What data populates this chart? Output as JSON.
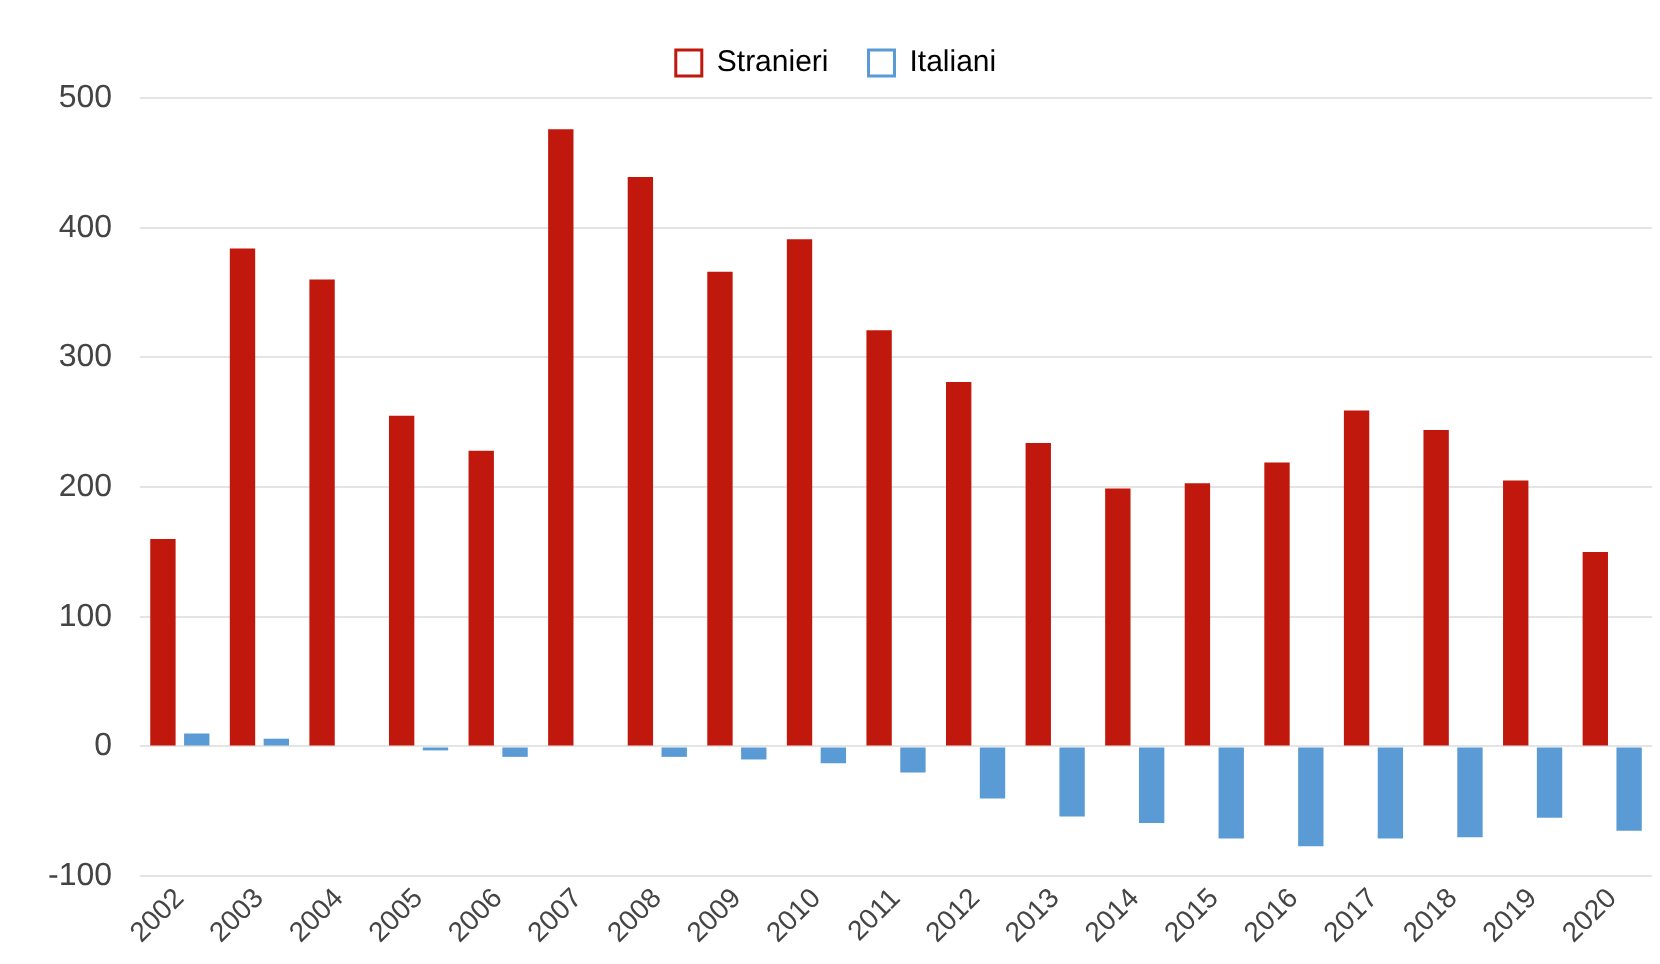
{
  "chart_data": {
    "type": "bar",
    "categories": [
      "2002",
      "2003",
      "2004",
      "2005",
      "2006",
      "2007",
      "2008",
      "2009",
      "2010",
      "2011",
      "2012",
      "2013",
      "2014",
      "2015",
      "2016",
      "2017",
      "2018",
      "2019",
      "2020"
    ],
    "series": [
      {
        "name": "Stranieri",
        "color": "#c0180c",
        "values": [
          160,
          384,
          360,
          255,
          228,
          476,
          439,
          366,
          391,
          321,
          281,
          234,
          199,
          203,
          219,
          259,
          244,
          205,
          150
        ]
      },
      {
        "name": "Italiani",
        "color": "#5b9bd5",
        "values": [
          10,
          6,
          0,
          -3,
          -8,
          0,
          -8,
          -10,
          -13,
          -20,
          -40,
          -54,
          -59,
          -71,
          -77,
          -71,
          -70,
          -55,
          -65
        ]
      }
    ],
    "ylim": [
      -100,
      500
    ],
    "yticks": [
      -100,
      0,
      100,
      200,
      300,
      400,
      500
    ],
    "grid": "y",
    "legend": "top"
  }
}
